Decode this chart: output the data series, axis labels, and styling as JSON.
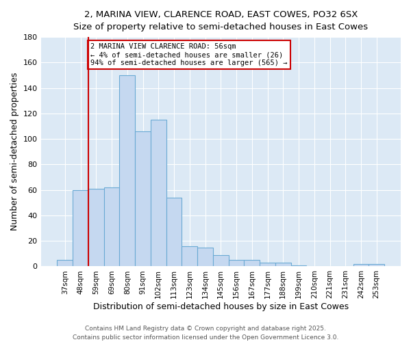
{
  "title_line1": "2, MARINA VIEW, CLARENCE ROAD, EAST COWES, PO32 6SX",
  "title_line2": "Size of property relative to semi-detached houses in East Cowes",
  "xlabel": "Distribution of semi-detached houses by size in East Cowes",
  "ylabel": "Number of semi-detached properties",
  "categories": [
    "37sqm",
    "48sqm",
    "59sqm",
    "69sqm",
    "80sqm",
    "91sqm",
    "102sqm",
    "113sqm",
    "123sqm",
    "134sqm",
    "145sqm",
    "156sqm",
    "167sqm",
    "177sqm",
    "188sqm",
    "199sqm",
    "210sqm",
    "221sqm",
    "231sqm",
    "242sqm",
    "253sqm"
  ],
  "values": [
    5,
    60,
    61,
    62,
    150,
    106,
    115,
    54,
    16,
    15,
    9,
    5,
    5,
    3,
    3,
    1,
    0,
    0,
    0,
    2,
    2
  ],
  "bar_color": "#c5d8f0",
  "bar_edge_color": "#6aaad4",
  "vline_x_index": 1.5,
  "vline_color": "#cc0000",
  "annotation_text": "2 MARINA VIEW CLARENCE ROAD: 56sqm\n← 4% of semi-detached houses are smaller (26)\n94% of semi-detached houses are larger (565) →",
  "annotation_box_color": "white",
  "annotation_box_edge_color": "#cc0000",
  "ylim": [
    0,
    180
  ],
  "yticks": [
    0,
    20,
    40,
    60,
    80,
    100,
    120,
    140,
    160,
    180
  ],
  "footer_line1": "Contains HM Land Registry data © Crown copyright and database right 2025.",
  "footer_line2": "Contains public sector information licensed under the Open Government Licence 3.0.",
  "background_color": "#ffffff",
  "plot_bg_color": "#dce9f5"
}
